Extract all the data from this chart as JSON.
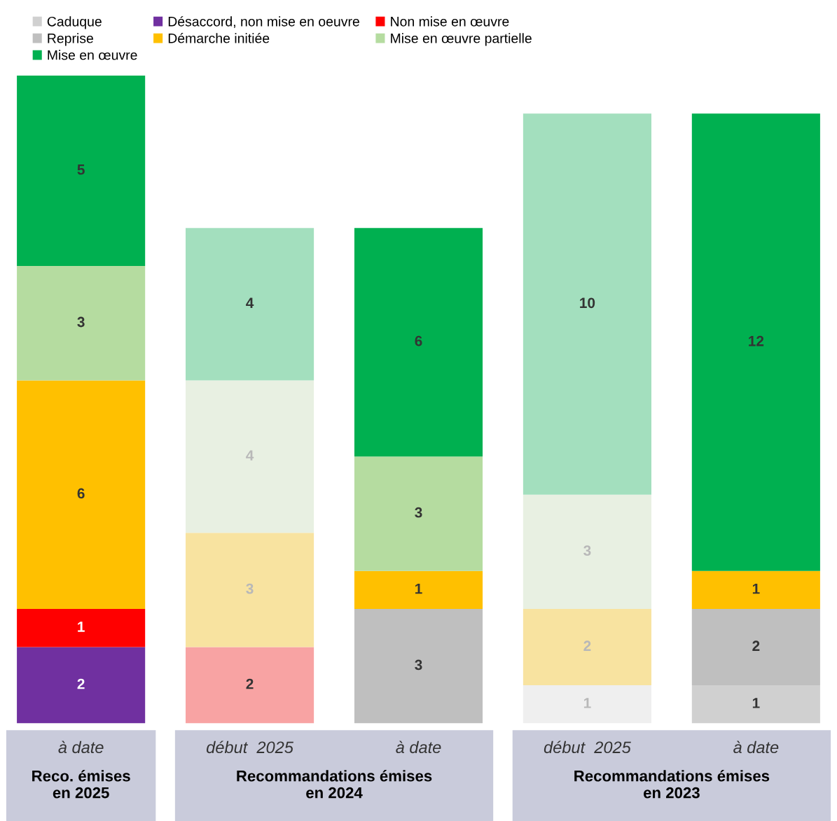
{
  "chart_data": {
    "type": "bar",
    "stacked": true,
    "data_labels": true,
    "legend": "top",
    "categories": [
      "à date",
      "début  2025",
      "à date",
      "début  2025",
      "à date"
    ],
    "series": [
      {
        "name": "Caduque",
        "color": "#d0d0d0",
        "colors": [
          "#d0d0d0",
          "#d0d0d0",
          "#d0d0d0",
          "#efefef",
          "#d0d0d0"
        ],
        "values": [
          null,
          null,
          null,
          1,
          1
        ]
      },
      {
        "name": "Désaccord, non mise en oeuvre",
        "color": "#7030a0",
        "values": [
          2,
          null,
          null,
          null,
          null
        ]
      },
      {
        "name": "Reprise",
        "color": "#bfbfbf",
        "values": [
          null,
          null,
          3,
          null,
          2
        ]
      },
      {
        "name": "Non mise en œuvre",
        "color": "#ff0000",
        "colors": [
          "#ff0000",
          "#f8a3a3",
          "#ff0000",
          "#ff0000",
          "#ff0000"
        ],
        "values": [
          1,
          2,
          null,
          null,
          null
        ]
      },
      {
        "name": "Démarche initiée",
        "color": "#ffc000",
        "colors": [
          "#ffc000",
          "#f8e3a0",
          "#ffc000",
          "#f8e3a0",
          "#ffc000"
        ],
        "values": [
          6,
          3,
          1,
          2,
          1
        ]
      },
      {
        "name": "Mise en œuvre partielle",
        "color": "#b5dca0",
        "colors": [
          "#b5dca0",
          "#e8f0e2",
          "#b5dca0",
          "#e8f0e2",
          "#b5dca0"
        ],
        "values": [
          3,
          4,
          3,
          3,
          null
        ]
      },
      {
        "name": "Mise en œuvre",
        "color": "#00b050",
        "colors": [
          "#00b050",
          "#a3dfbe",
          "#00b050",
          "#a3dfbe",
          "#00b050"
        ],
        "values": [
          5,
          4,
          6,
          10,
          12
        ]
      }
    ],
    "annotations": [
      "Reco. émises\nen 2025",
      "Recommandations émises\nen 2024",
      "Recommandations émises\nen 2023"
    ]
  }
}
